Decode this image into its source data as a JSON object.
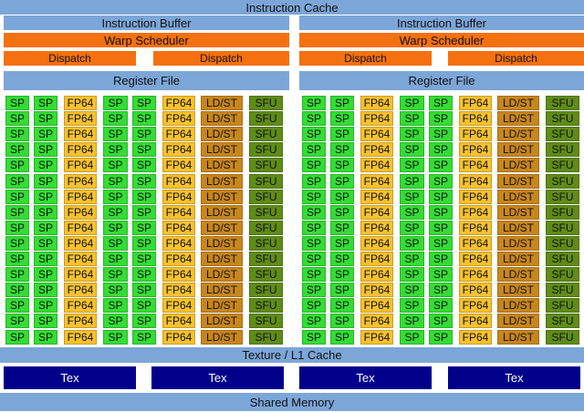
{
  "instruction_cache": "Instruction Cache",
  "texture_l1_cache": "Texture / L1 Cache",
  "shared_memory": "Shared Memory",
  "tex_units": [
    "Tex",
    "Tex",
    "Tex",
    "Tex"
  ],
  "halves": [
    {
      "instruction_buffer": "Instruction Buffer",
      "warp_scheduler": "Warp Scheduler",
      "dispatch": [
        "Dispatch",
        "Dispatch"
      ],
      "register_file": "Register File"
    },
    {
      "instruction_buffer": "Instruction Buffer",
      "warp_scheduler": "Warp Scheduler",
      "dispatch": [
        "Dispatch",
        "Dispatch"
      ],
      "register_file": "Register File"
    }
  ],
  "unit_labels": {
    "sp": "SP",
    "fp64": "FP64",
    "ldst": "LD/ST",
    "sfu": "SFU"
  },
  "core_rows_per_half": 16,
  "colors": {
    "cache_blue": "#7ca6d8",
    "scheduler_orange": "#f5700e",
    "sp_green": "#33dd33",
    "fp64_yellow": "#f6c12c",
    "ldst_brown": "#c8861b",
    "sfu_olive": "#5f8c16",
    "tex_navy": "#00008b"
  }
}
